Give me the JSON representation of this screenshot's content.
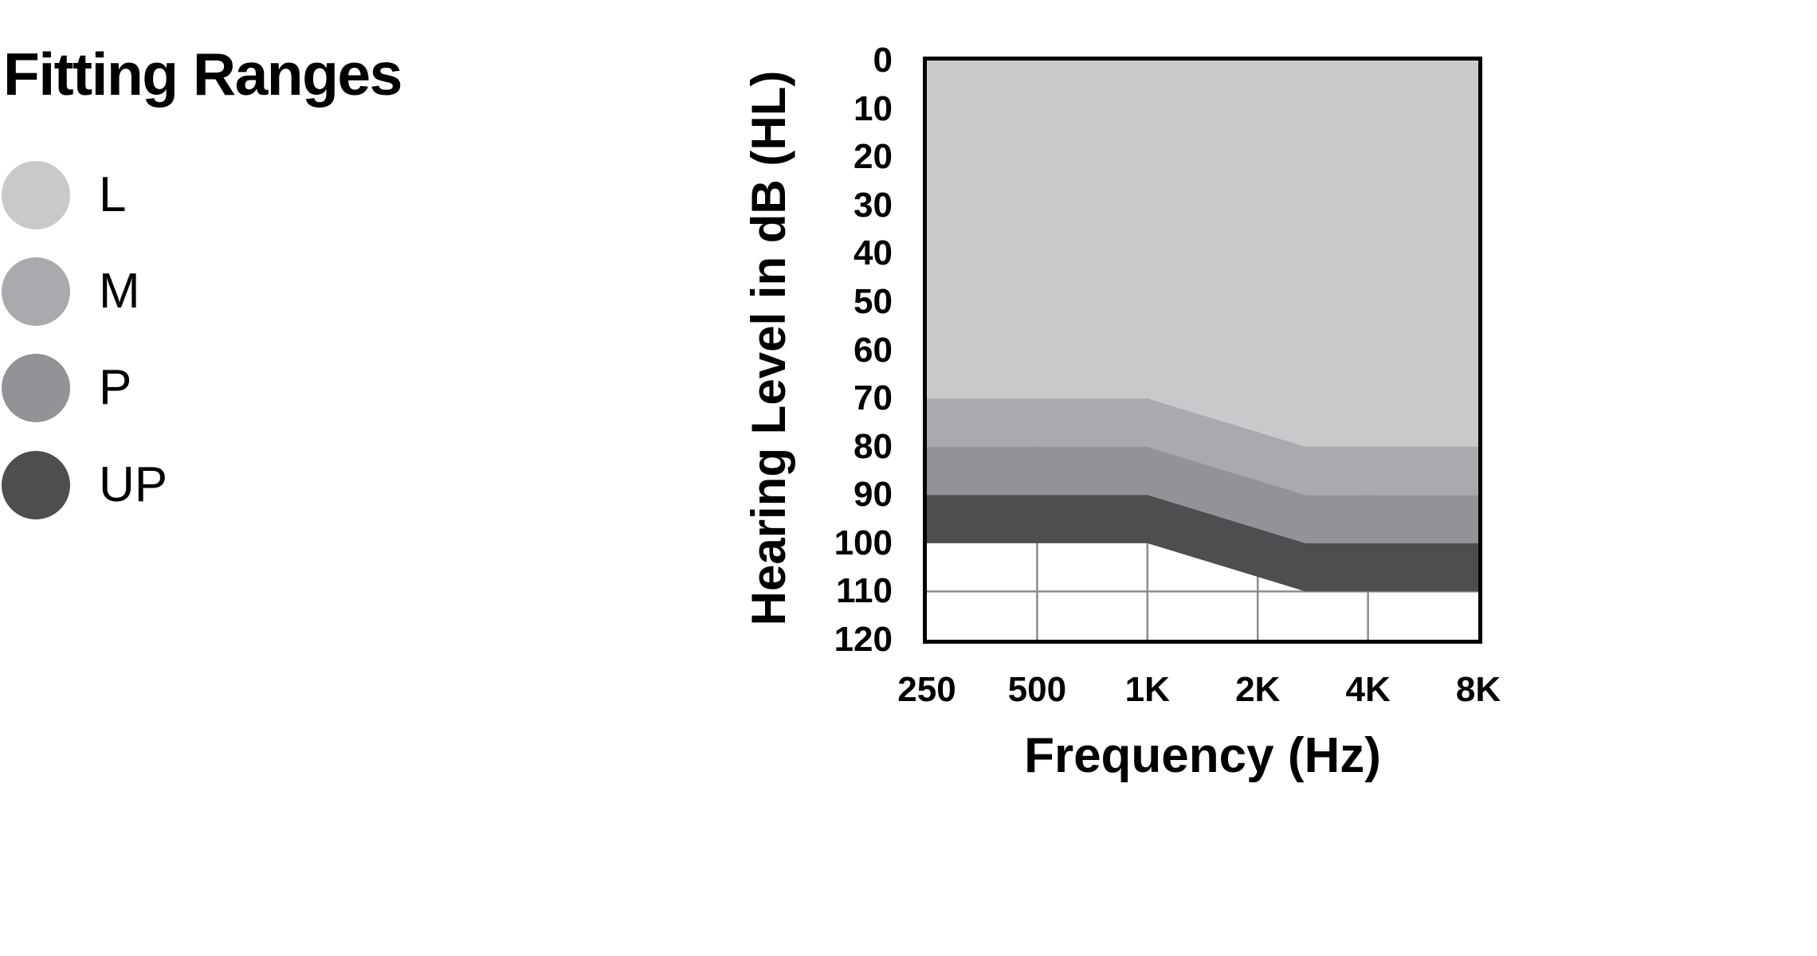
{
  "page": {
    "background": "#ffffff",
    "text_color": "#000000"
  },
  "legend": {
    "position": "left",
    "items": [
      {
        "label": "L",
        "color": "#c8c9cb"
      },
      {
        "label": "M",
        "color": "#a8aaad"
      },
      {
        "label": "P",
        "color": "#919396"
      },
      {
        "label": "UP",
        "color": "#4d4e50"
      }
    ]
  },
  "chart_data": {
    "type": "area",
    "title": "Fitting Ranges",
    "xlabel": "Frequency (Hz)",
    "ylabel": "Hearing Level in dB (HL)",
    "x_scale": "log-octave",
    "xlim": [
      250,
      8000
    ],
    "ylim": [
      0,
      120
    ],
    "y_inverted": true,
    "grid_on": true,
    "x_ticks": [
      {
        "label": "250",
        "hz": 250
      },
      {
        "label": "500",
        "hz": 500
      },
      {
        "label": "1K",
        "hz": 1000
      },
      {
        "label": "2K",
        "hz": 2000
      },
      {
        "label": "4K",
        "hz": 4000
      },
      {
        "label": "8K",
        "hz": 8000
      }
    ],
    "y_tick_step": 10,
    "y_tick_labels": [
      "0",
      "10",
      "20",
      "30",
      "40",
      "50",
      "60",
      "70",
      "80",
      "90",
      "100",
      "110",
      "120"
    ],
    "grid": {
      "vertical_hz": [
        500,
        1000,
        2000,
        4000
      ],
      "horizontal_db": [
        110
      ],
      "color": "#8c8c8c",
      "width": 2.5
    },
    "plot_border_color": "#000000",
    "series": [
      {
        "name": "L",
        "color": "#c8c9cb",
        "region_db": {
          "top": [
            [
              250,
              0
            ],
            [
              8000,
              0
            ]
          ],
          "bottom": [
            [
              250,
              70
            ],
            [
              1000,
              70
            ],
            [
              2700,
              80
            ],
            [
              8000,
              80
            ]
          ]
        }
      },
      {
        "name": "M",
        "color": "#a8aaad",
        "region_db": {
          "top": [
            [
              250,
              70
            ],
            [
              1000,
              70
            ],
            [
              2700,
              80
            ],
            [
              8000,
              80
            ]
          ],
          "bottom": [
            [
              250,
              80
            ],
            [
              1000,
              80
            ],
            [
              2700,
              90
            ],
            [
              8000,
              90
            ]
          ]
        }
      },
      {
        "name": "P",
        "color": "#919396",
        "region_db": {
          "top": [
            [
              250,
              80
            ],
            [
              1000,
              80
            ],
            [
              2700,
              90
            ],
            [
              8000,
              90
            ]
          ],
          "bottom": [
            [
              250,
              90
            ],
            [
              1000,
              90
            ],
            [
              2700,
              100
            ],
            [
              8000,
              100
            ]
          ]
        }
      },
      {
        "name": "UP",
        "color": "#4d4e50",
        "region_db": {
          "top": [
            [
              250,
              90
            ],
            [
              1000,
              90
            ],
            [
              2700,
              100
            ],
            [
              8000,
              100
            ]
          ],
          "bottom": [
            [
              250,
              100
            ],
            [
              1000,
              100
            ],
            [
              2700,
              110
            ],
            [
              8000,
              110
            ]
          ]
        }
      }
    ],
    "note": "Each fitting-range band is flat from 250 Hz to 1 kHz, drops 10 dB by ~2.7 kHz, then stays flat to 8 kHz."
  }
}
